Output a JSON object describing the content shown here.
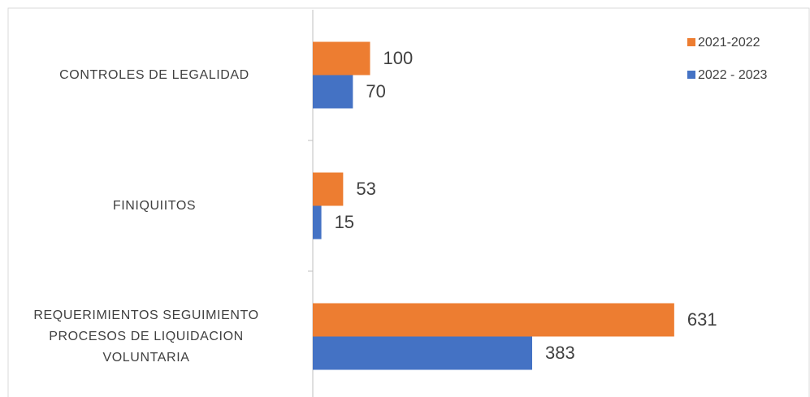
{
  "chart_data": {
    "type": "bar",
    "orientation": "horizontal",
    "categories": [
      "CONTROLES DE LEGALIDAD",
      "FINIQUIITOS",
      "REQUERIMIENTOS SEGUIMIENTO PROCESOS DE LIQUIDACION VOLUNTARIA"
    ],
    "series": [
      {
        "name": "2021-2022",
        "color": "#ed7d31",
        "values": [
          100,
          53,
          631
        ]
      },
      {
        "name": "2022 - 2023",
        "color": "#4472c4",
        "values": [
          70,
          15,
          383
        ]
      }
    ],
    "legend": "top-right"
  }
}
